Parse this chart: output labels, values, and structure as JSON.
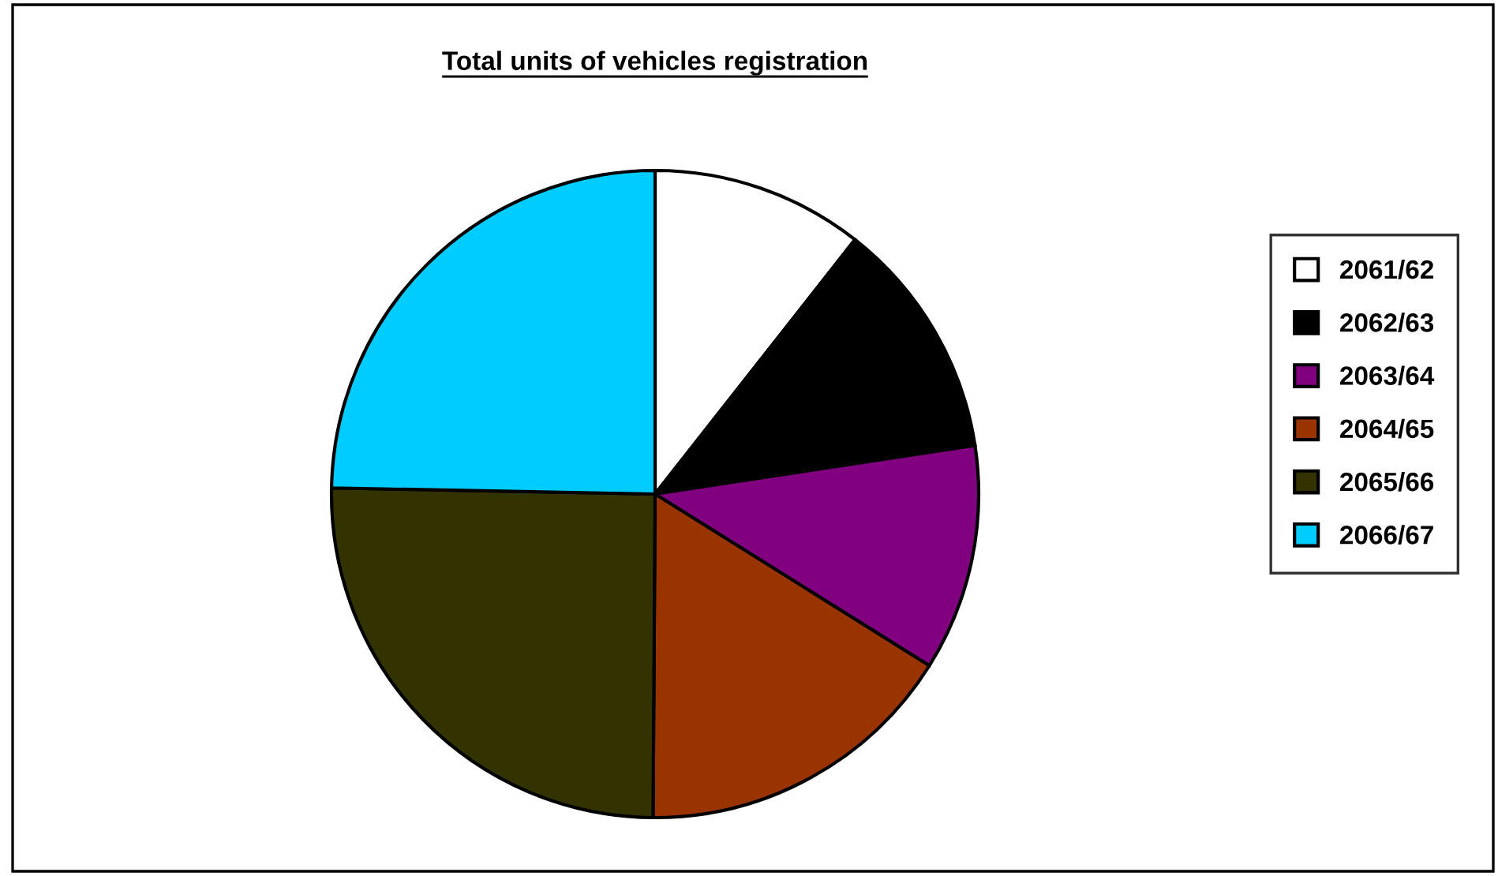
{
  "chart_data": {
    "type": "pie",
    "title": "Total units of vehicles registration",
    "categories": [
      "2061/62",
      "2062/63",
      "2063/64",
      "2064/65",
      "2065/66",
      "2066/67"
    ],
    "values": [
      10.6,
      12.0,
      11.3,
      16.2,
      25.2,
      24.7
    ],
    "colors": [
      "#ffffff",
      "#000000",
      "#800080",
      "#993300",
      "#333300",
      "#00ccff"
    ],
    "legend": "right"
  }
}
